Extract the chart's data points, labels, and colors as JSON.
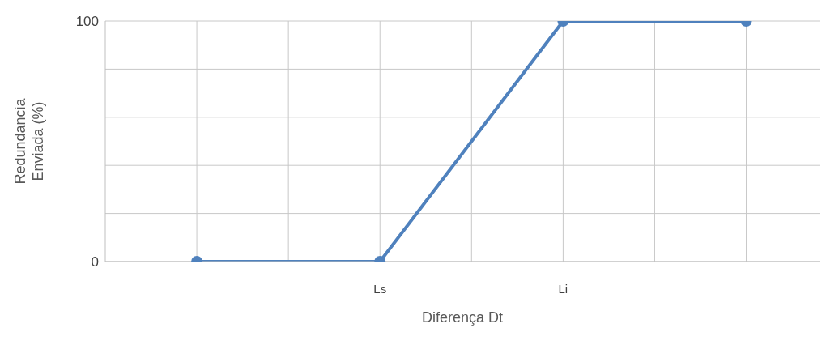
{
  "chart_data": {
    "type": "line",
    "xlabel": "Diferença Dt",
    "ylabel": "Redundancia\nEnviada (%)",
    "categories": [
      null,
      "Ls",
      "Li",
      null
    ],
    "series": [
      {
        "color": "#4f81bd",
        "values": [
          0,
          0,
          100,
          100
        ]
      }
    ],
    "ylim": [
      0,
      100
    ],
    "yticks": [
      0,
      {
        "value": 20,
        "label": null
      },
      {
        "value": 40,
        "label": null
      },
      {
        "value": 60,
        "label": null
      },
      {
        "value": 80,
        "label": null
      },
      100
    ],
    "grid": true,
    "marker": "circle",
    "line_style": "solid"
  }
}
